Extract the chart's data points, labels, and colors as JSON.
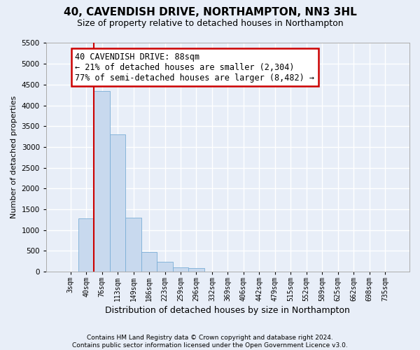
{
  "title_line1": "40, CAVENDISH DRIVE, NORTHAMPTON, NN3 3HL",
  "title_line2": "Size of property relative to detached houses in Northampton",
  "xlabel": "Distribution of detached houses by size in Northampton",
  "ylabel": "Number of detached properties",
  "bar_labels": [
    "3sqm",
    "40sqm",
    "76sqm",
    "113sqm",
    "149sqm",
    "186sqm",
    "223sqm",
    "259sqm",
    "296sqm",
    "332sqm",
    "369sqm",
    "406sqm",
    "442sqm",
    "479sqm",
    "515sqm",
    "552sqm",
    "589sqm",
    "625sqm",
    "662sqm",
    "698sqm",
    "735sqm"
  ],
  "bar_values": [
    0,
    1280,
    4350,
    3300,
    1300,
    470,
    230,
    100,
    80,
    0,
    0,
    0,
    0,
    0,
    0,
    0,
    0,
    0,
    0,
    0,
    0
  ],
  "bar_color": "#c8d9ee",
  "bar_edge_color": "#7aaed6",
  "vline_position": 2.0,
  "vline_color": "#cc0000",
  "annotation_text": "40 CAVENDISH DRIVE: 88sqm\n← 21% of detached houses are smaller (2,304)\n77% of semi-detached houses are larger (8,482) →",
  "annotation_box_facecolor": "#ffffff",
  "annotation_box_edgecolor": "#cc0000",
  "ylim_max": 5500,
  "ytick_step": 500,
  "background_color": "#e8eef8",
  "plot_bg_color": "#e8eef8",
  "grid_color": "#ffffff",
  "footnote": "Contains HM Land Registry data © Crown copyright and database right 2024.\nContains public sector information licensed under the Open Government Licence v3.0.",
  "title_fontsize": 11,
  "subtitle_fontsize": 9,
  "xlabel_fontsize": 9,
  "ylabel_fontsize": 8,
  "tick_fontsize": 7,
  "annot_fontsize": 8.5
}
